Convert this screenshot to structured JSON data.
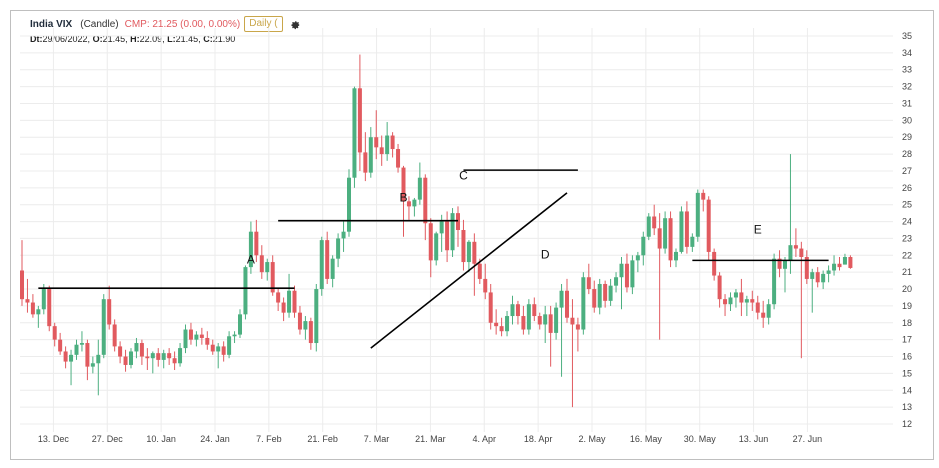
{
  "header": {
    "symbol": "India VIX",
    "chart_type": "(Candle)",
    "cmp": "CMP: 21.25 (0.00, 0.00%)",
    "timeframe": "Daily (",
    "settings_icon": "gear-icon"
  },
  "ohlc": {
    "dt_label": "Dt:",
    "dt_value": "29/06/2022,",
    "o_label": "O:",
    "o_value": "21.45,",
    "h_label": "H:",
    "h_value": "22.09,",
    "l_label": "L:",
    "l_value": "21.45,",
    "c_label": "C:",
    "c_value": "21.90"
  },
  "colors": {
    "up": "#4caf80",
    "down": "#e15a5f",
    "grid": "#ececec",
    "line": "#000000"
  },
  "chart_data": {
    "type": "candlestick",
    "title": "India VIX",
    "ylim": [
      12,
      35
    ],
    "yticks": [
      12,
      13,
      14,
      15,
      16,
      17,
      18,
      19,
      20,
      21,
      22,
      23,
      24,
      25,
      26,
      27,
      28,
      29,
      30,
      31,
      32,
      33,
      34,
      35
    ],
    "y_axis_position": "right",
    "x_tick_labels": [
      "13. Dec",
      "27. Dec",
      "10. Jan",
      "24. Jan",
      "7. Feb",
      "21. Feb",
      "7. Mar",
      "21. Mar",
      "4. Apr",
      "18. Apr",
      "2. May",
      "16. May",
      "30. May",
      "13. Jun",
      "27. Jun"
    ],
    "grid": true,
    "candles": [
      [
        21.1,
        22.9,
        19.0,
        19.4
      ],
      [
        19.4,
        20.6,
        18.6,
        19.2
      ],
      [
        19.2,
        19.7,
        18.3,
        18.5
      ],
      [
        18.5,
        19.0,
        17.7,
        18.8
      ],
      [
        18.8,
        20.3,
        18.5,
        20.0
      ],
      [
        20.0,
        20.2,
        17.5,
        17.8
      ],
      [
        17.8,
        18.0,
        16.6,
        17.0
      ],
      [
        17.0,
        17.4,
        16.1,
        16.3
      ],
      [
        16.3,
        16.6,
        15.3,
        15.7
      ],
      [
        15.7,
        16.4,
        14.3,
        16.1
      ],
      [
        16.1,
        17.0,
        15.8,
        16.7
      ],
      [
        16.7,
        17.5,
        16.3,
        16.8
      ],
      [
        16.8,
        17.0,
        14.6,
        15.4
      ],
      [
        15.4,
        16.0,
        15.0,
        15.6
      ],
      [
        15.6,
        17.0,
        13.7,
        16.1
      ],
      [
        16.1,
        19.7,
        15.9,
        19.4
      ],
      [
        19.4,
        20.2,
        17.6,
        17.9
      ],
      [
        17.9,
        18.2,
        16.3,
        16.6
      ],
      [
        16.6,
        16.9,
        15.6,
        16.0
      ],
      [
        16.0,
        16.4,
        15.1,
        15.5
      ],
      [
        15.5,
        16.5,
        15.3,
        16.3
      ],
      [
        16.3,
        17.1,
        15.9,
        16.8
      ],
      [
        16.8,
        17.0,
        15.5,
        16.0
      ],
      [
        16.0,
        16.5,
        15.2,
        15.9
      ],
      [
        15.9,
        16.3,
        15.0,
        16.2
      ],
      [
        16.2,
        16.5,
        15.4,
        15.8
      ],
      [
        15.8,
        16.4,
        15.3,
        16.2
      ],
      [
        16.2,
        16.5,
        15.5,
        15.9
      ],
      [
        15.9,
        16.3,
        15.2,
        15.6
      ],
      [
        15.6,
        16.8,
        15.4,
        16.5
      ],
      [
        16.5,
        17.9,
        16.2,
        17.6
      ],
      [
        17.6,
        18.0,
        16.7,
        17.0
      ],
      [
        17.0,
        17.5,
        16.6,
        17.3
      ],
      [
        17.3,
        17.7,
        16.7,
        17.1
      ],
      [
        17.1,
        17.5,
        16.4,
        16.7
      ],
      [
        16.7,
        17.0,
        16.1,
        16.3
      ],
      [
        16.3,
        16.8,
        15.3,
        16.6
      ],
      [
        16.6,
        16.9,
        15.7,
        16.1
      ],
      [
        16.1,
        17.5,
        15.9,
        17.2
      ],
      [
        17.2,
        17.5,
        16.8,
        17.3
      ],
      [
        17.3,
        18.8,
        17.1,
        18.5
      ],
      [
        18.5,
        21.4,
        18.2,
        21.3
      ],
      [
        21.3,
        24.0,
        20.9,
        23.4
      ],
      [
        23.4,
        24.1,
        21.6,
        22.0
      ],
      [
        22.0,
        22.6,
        20.6,
        21.0
      ],
      [
        21.0,
        21.8,
        20.5,
        21.6
      ],
      [
        21.6,
        22.0,
        19.6,
        19.8
      ],
      [
        19.8,
        20.0,
        18.7,
        19.2
      ],
      [
        19.2,
        19.5,
        18.1,
        18.6
      ],
      [
        18.6,
        20.9,
        18.3,
        19.9
      ],
      [
        19.9,
        20.2,
        18.3,
        18.6
      ],
      [
        18.6,
        19.0,
        17.3,
        17.6
      ],
      [
        17.6,
        18.4,
        17.0,
        18.1
      ],
      [
        18.1,
        18.3,
        16.4,
        16.8
      ],
      [
        16.8,
        20.3,
        16.3,
        20.0
      ],
      [
        20.0,
        23.1,
        19.6,
        22.9
      ],
      [
        22.9,
        23.4,
        20.3,
        20.6
      ],
      [
        20.6,
        22.0,
        20.1,
        21.8
      ],
      [
        21.8,
        23.3,
        21.3,
        23.0
      ],
      [
        23.0,
        24.0,
        22.2,
        23.4
      ],
      [
        23.4,
        27.1,
        23.1,
        26.6
      ],
      [
        26.6,
        32.0,
        26.0,
        31.9
      ],
      [
        31.9,
        33.9,
        27.0,
        28.1
      ],
      [
        28.1,
        29.3,
        26.4,
        26.9
      ],
      [
        26.9,
        29.6,
        26.6,
        29.0
      ],
      [
        29.0,
        30.6,
        27.7,
        28.4
      ],
      [
        28.4,
        29.1,
        27.3,
        28.0
      ],
      [
        28.0,
        29.9,
        27.6,
        29.1
      ],
      [
        29.1,
        29.3,
        27.8,
        28.3
      ],
      [
        28.3,
        28.6,
        26.9,
        27.2
      ],
      [
        27.2,
        27.3,
        23.1,
        25.2
      ],
      [
        25.2,
        25.5,
        24.1,
        24.9
      ],
      [
        24.9,
        25.4,
        24.3,
        25.3
      ],
      [
        25.3,
        27.5,
        25.0,
        26.6
      ],
      [
        26.6,
        26.8,
        22.9,
        23.9
      ],
      [
        23.9,
        24.2,
        20.7,
        21.7
      ],
      [
        21.7,
        23.4,
        21.4,
        23.3
      ],
      [
        23.3,
        24.4,
        22.2,
        24.0
      ],
      [
        24.0,
        24.6,
        21.6,
        22.3
      ],
      [
        22.3,
        24.8,
        21.9,
        24.5
      ],
      [
        24.5,
        24.9,
        22.5,
        23.5
      ],
      [
        23.5,
        24.1,
        21.1,
        21.6
      ],
      [
        21.6,
        22.9,
        21.0,
        22.8
      ],
      [
        22.8,
        23.3,
        19.6,
        21.5
      ],
      [
        21.5,
        21.8,
        20.3,
        20.6
      ],
      [
        20.6,
        21.5,
        19.4,
        19.8
      ],
      [
        19.8,
        20.3,
        17.6,
        18.0
      ],
      [
        18.0,
        18.8,
        17.3,
        17.8
      ],
      [
        17.8,
        18.3,
        17.2,
        17.5
      ],
      [
        17.5,
        18.7,
        17.2,
        18.4
      ],
      [
        18.4,
        19.6,
        17.9,
        19.1
      ],
      [
        19.1,
        19.3,
        17.9,
        18.4
      ],
      [
        18.4,
        19.0,
        17.3,
        17.6
      ],
      [
        17.6,
        19.4,
        17.3,
        19.1
      ],
      [
        19.1,
        19.5,
        18.1,
        18.4
      ],
      [
        18.4,
        18.6,
        17.6,
        17.9
      ],
      [
        17.9,
        19.0,
        16.8,
        18.5
      ],
      [
        18.5,
        19.0,
        15.4,
        17.4
      ],
      [
        17.4,
        19.2,
        17.0,
        18.9
      ],
      [
        18.9,
        20.3,
        14.8,
        19.9
      ],
      [
        19.9,
        20.6,
        18.0,
        18.3
      ],
      [
        18.3,
        19.4,
        13.0,
        17.9
      ],
      [
        17.9,
        18.3,
        16.3,
        17.6
      ],
      [
        17.6,
        21.0,
        17.3,
        20.7
      ],
      [
        20.7,
        21.5,
        19.7,
        20.0
      ],
      [
        20.0,
        20.5,
        18.6,
        18.9
      ],
      [
        18.9,
        20.6,
        18.5,
        20.3
      ],
      [
        20.3,
        20.5,
        18.9,
        19.3
      ],
      [
        19.3,
        20.6,
        19.0,
        20.2
      ],
      [
        20.2,
        21.0,
        19.8,
        20.7
      ],
      [
        20.7,
        21.9,
        18.8,
        21.5
      ],
      [
        21.5,
        22.1,
        19.8,
        20.1
      ],
      [
        20.1,
        22.0,
        19.7,
        21.7
      ],
      [
        21.7,
        22.2,
        21.0,
        22.0
      ],
      [
        22.0,
        23.4,
        21.4,
        23.1
      ],
      [
        23.1,
        24.5,
        22.9,
        24.3
      ],
      [
        24.3,
        25.0,
        23.2,
        23.6
      ],
      [
        23.6,
        24.5,
        17.0,
        22.4
      ],
      [
        22.4,
        24.6,
        22.1,
        24.2
      ],
      [
        24.2,
        24.6,
        21.3,
        21.7
      ],
      [
        21.7,
        22.4,
        21.3,
        22.2
      ],
      [
        22.2,
        24.9,
        22.1,
        24.6
      ],
      [
        24.6,
        25.2,
        22.1,
        22.5
      ],
      [
        22.5,
        23.3,
        22.2,
        23.1
      ],
      [
        23.1,
        25.9,
        22.8,
        25.7
      ],
      [
        25.7,
        25.9,
        24.6,
        25.3
      ],
      [
        25.3,
        25.5,
        21.7,
        22.2
      ],
      [
        22.2,
        22.4,
        20.5,
        20.8
      ],
      [
        20.8,
        21.0,
        18.9,
        19.4
      ],
      [
        19.4,
        19.7,
        18.4,
        19.1
      ],
      [
        19.1,
        19.8,
        18.7,
        19.5
      ],
      [
        19.5,
        20.0,
        18.9,
        19.8
      ],
      [
        19.8,
        20.6,
        18.4,
        19.2
      ],
      [
        19.2,
        19.6,
        18.4,
        19.4
      ],
      [
        19.4,
        19.9,
        18.7,
        19.2
      ],
      [
        19.2,
        19.6,
        18.2,
        18.6
      ],
      [
        18.6,
        19.3,
        17.7,
        18.3
      ],
      [
        18.3,
        19.4,
        17.9,
        19.1
      ],
      [
        19.1,
        22.1,
        18.8,
        21.8
      ],
      [
        21.8,
        22.3,
        20.7,
        21.2
      ],
      [
        21.2,
        21.9,
        19.8,
        21.7
      ],
      [
        21.7,
        28.0,
        20.9,
        22.6
      ],
      [
        22.6,
        23.6,
        21.9,
        22.4
      ],
      [
        22.4,
        22.8,
        15.9,
        21.9
      ],
      [
        21.9,
        22.3,
        20.3,
        20.6
      ],
      [
        20.6,
        21.2,
        18.6,
        21.0
      ],
      [
        21.0,
        21.3,
        20.1,
        20.4
      ],
      [
        20.4,
        21.1,
        20.0,
        20.9
      ],
      [
        20.9,
        21.4,
        20.4,
        21.1
      ],
      [
        21.1,
        22.0,
        20.8,
        21.5
      ],
      [
        21.5,
        21.9,
        21.1,
        21.3
      ],
      [
        21.45,
        22.09,
        21.45,
        21.9
      ],
      [
        21.9,
        22.0,
        21.2,
        21.25
      ]
    ],
    "annotations": [
      {
        "text": "A",
        "x_index": 42,
        "y": 21.5
      },
      {
        "text": "B",
        "x_index": 70,
        "y": 25.2
      },
      {
        "text": "C",
        "x_index": 81,
        "y": 26.5
      },
      {
        "text": "D",
        "x_index": 96,
        "y": 21.8
      },
      {
        "text": "E",
        "x_index": 135,
        "y": 23.3
      }
    ],
    "lines": [
      {
        "type": "horizontal",
        "label": "A",
        "y": 20.05,
        "x_start_index": 3,
        "x_end_index": 50
      },
      {
        "type": "horizontal",
        "label": "B",
        "y": 24.05,
        "x_start_index": 47,
        "x_end_index": 80
      },
      {
        "type": "horizontal",
        "label": "C",
        "y": 27.05,
        "x_start_index": 81,
        "x_end_index": 102
      },
      {
        "type": "trendline",
        "label": "D",
        "x1_index": 64,
        "y1": 16.5,
        "x2_index": 100,
        "y2": 25.7
      },
      {
        "type": "horizontal",
        "label": "E",
        "y": 21.7,
        "x_start_index": 123,
        "x_end_index": 148
      }
    ]
  }
}
